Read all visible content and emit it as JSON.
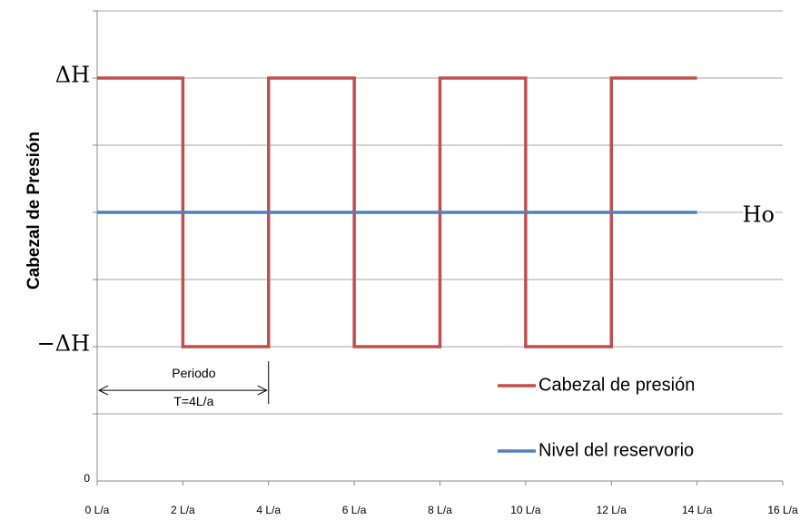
{
  "chart_data": {
    "type": "line",
    "y_label": "Cabezal de Presión",
    "xlim": [
      0,
      16
    ],
    "xticks": [
      {
        "value": 0,
        "label": "0 L/a"
      },
      {
        "value": 2,
        "label": "2 L/a"
      },
      {
        "value": 4,
        "label": "4 L/a"
      },
      {
        "value": 6,
        "label": "6 L/a"
      },
      {
        "value": 8,
        "label": "8 L/a"
      },
      {
        "value": 10,
        "label": "10 L/a"
      },
      {
        "value": 12,
        "label": "12 L/a"
      },
      {
        "value": 14,
        "label": "14 L/a"
      },
      {
        "value": 16,
        "label": "16 L/a"
      }
    ],
    "ylim": [
      0,
      7
    ],
    "yticks": [
      0,
      {
        "value": 2,
        "label": "−ΔH"
      },
      {
        "value": 6,
        "label": "ΔH"
      }
    ],
    "ygrid": [
      1,
      2,
      3,
      4,
      5,
      6,
      7
    ],
    "grid": true,
    "legend": "lower right",
    "series": [
      {
        "name": "Cabezal de presión",
        "color": "#c0504d",
        "x": [
          0,
          2,
          2,
          4,
          4,
          6,
          6,
          8,
          8,
          10,
          10,
          12,
          12,
          14
        ],
        "values": [
          6,
          6,
          2,
          2,
          6,
          6,
          2,
          2,
          6,
          6,
          2,
          2,
          6,
          6
        ]
      },
      {
        "name": "Nivel del reservorio",
        "color": "#4f81bd",
        "end_label": "Ho",
        "x": [
          0,
          14
        ],
        "values": [
          4,
          4
        ]
      }
    ],
    "annotation": {
      "text": [
        "Periodo",
        "T=4L/a"
      ],
      "x": [
        0,
        4
      ],
      "y": 1.35
    }
  }
}
